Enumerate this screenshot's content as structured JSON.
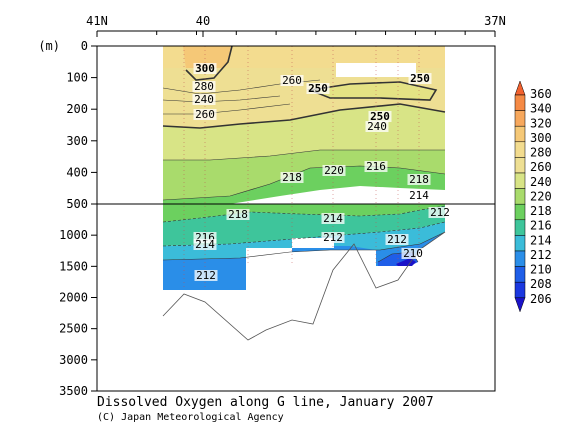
{
  "chart_data": {
    "type": "heatmap",
    "title": "Dissolved Oxygen along G line, January 2007",
    "credit": "(C) Japan Meteorological Agency",
    "y_unit_label": "(m)",
    "x_axis": {
      "ticks": [
        "41N",
        "40",
        "37N"
      ],
      "range_deg_N": [
        41,
        37
      ],
      "reversed": true
    },
    "y_axis": {
      "upper_panel": {
        "range_m": [
          0,
          500
        ],
        "ticks": [
          "0",
          "100",
          "200",
          "300",
          "400",
          "500"
        ]
      },
      "lower_panel": {
        "range_m": [
          500,
          3500
        ],
        "ticks": [
          "1000",
          "1500",
          "2000",
          "2500",
          "3000",
          "3500"
        ]
      }
    },
    "colorbar": {
      "levels": [
        206,
        208,
        210,
        212,
        214,
        216,
        218,
        220,
        240,
        260,
        280,
        300,
        320,
        340,
        360
      ],
      "labels": [
        "360",
        "340",
        "320",
        "300",
        "280",
        "260",
        "240",
        "220",
        "218",
        "216",
        "214",
        "212",
        "210",
        "208",
        "206"
      ],
      "colors": [
        "#f2612e",
        "#f58a45",
        "#f7a85d",
        "#f5c877",
        "#f3dc8f",
        "#eedf93",
        "#d8e486",
        "#a9db6c",
        "#6cd05f",
        "#3ec59b",
        "#3bbcd9",
        "#2a8ee8",
        "#1f5ee8",
        "#1b38e0",
        "#1a12c8"
      ]
    },
    "contour_labels": [
      "300",
      "280",
      "260",
      "250",
      "240",
      "260",
      "250",
      "250",
      "240",
      "218",
      "220",
      "216",
      "218",
      "214",
      "218",
      "214",
      "212",
      "216",
      "214",
      "212",
      "212",
      "210",
      "212"
    ],
    "station_ticks_deg_N": [
      40.4,
      40.0,
      39.6,
      39.2,
      38.8,
      38.4,
      38.1,
      37.8,
      37.6,
      37.3
    ]
  }
}
